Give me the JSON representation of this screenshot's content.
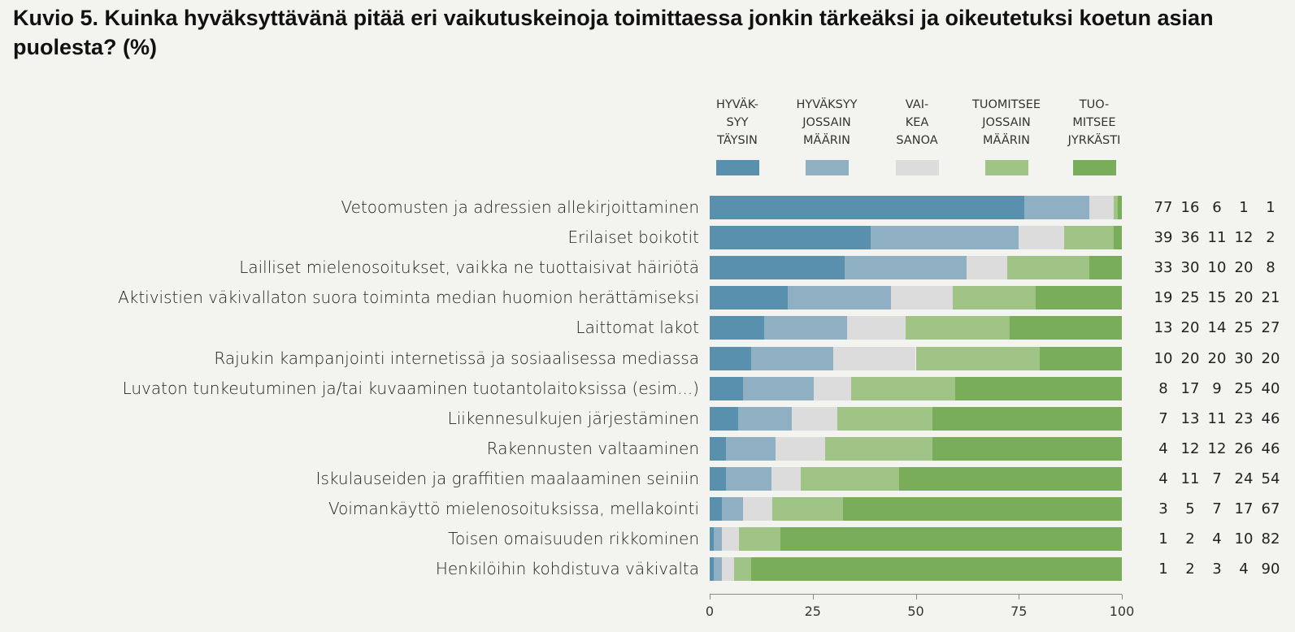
{
  "chart_data": {
    "type": "bar",
    "stacked": true,
    "orientation": "horizontal",
    "title": "Kuvio 5. Kuinka hyväksyttävänä pitää eri vaikutuskeinoja toimittaessa jonkin tärkeäksi ja oikeutetuksi koetun asian puolesta? (%)",
    "xlabel": "",
    "ylabel": "",
    "xlim": [
      0,
      100
    ],
    "xticks": [
      "0",
      "25",
      "50",
      "75",
      "100"
    ],
    "legend_position": "top",
    "categories": [
      "Vetoomusten ja adressien allekirjoittaminen",
      "Erilaiset boikotit",
      "Lailliset mielenosoitukset, vaikka ne tuottaisivat häiriötä",
      "Aktivistien väkivallaton suora toiminta median huomion herättämiseksi",
      "Laittomat lakot",
      "Rajukin kampanjointi internetissä ja sosiaalisessa mediassa",
      "Luvaton tunkeutuminen ja/tai kuvaaminen tuotantolaitoksissa (esim...)",
      "Liikennesulkujen järjestäminen",
      "Rakennusten valtaaminen",
      "Iskulauseiden ja graffitien maalaaminen seiniin",
      "Voimankäyttö mielenosoituksissa, mellakointi",
      "Toisen omaisuuden rikkominen",
      "Henkilöihin kohdistuva väkivalta"
    ],
    "series": [
      {
        "name": "HYVÄK-\nSYY\nTÄYSIN",
        "color": "#5990ae",
        "values": [
          77,
          39,
          33,
          19,
          13,
          10,
          8,
          7,
          4,
          4,
          3,
          1,
          1
        ]
      },
      {
        "name": "HYVÄKSYY\nJOSSAIN\nMÄÄRIN",
        "color": "#8fb0c3",
        "values": [
          16,
          36,
          30,
          25,
          20,
          20,
          17,
          13,
          12,
          11,
          5,
          2,
          2
        ]
      },
      {
        "name": "VAI-\nKEA\nSANOA",
        "color": "#dcdcdc",
        "values": [
          6,
          11,
          10,
          15,
          14,
          20,
          9,
          11,
          12,
          7,
          7,
          4,
          3
        ]
      },
      {
        "name": "TUOMITSEE\nJOSSAIN\nMÄÄRIN",
        "color": "#a0c486",
        "values": [
          1,
          12,
          20,
          20,
          25,
          30,
          25,
          23,
          26,
          24,
          17,
          10,
          4
        ]
      },
      {
        "name": "TUO-\nMITSEE\nJYRKÄSTI",
        "color": "#79ad59",
        "values": [
          1,
          2,
          8,
          21,
          27,
          20,
          40,
          46,
          46,
          54,
          67,
          82,
          90
        ]
      }
    ]
  }
}
